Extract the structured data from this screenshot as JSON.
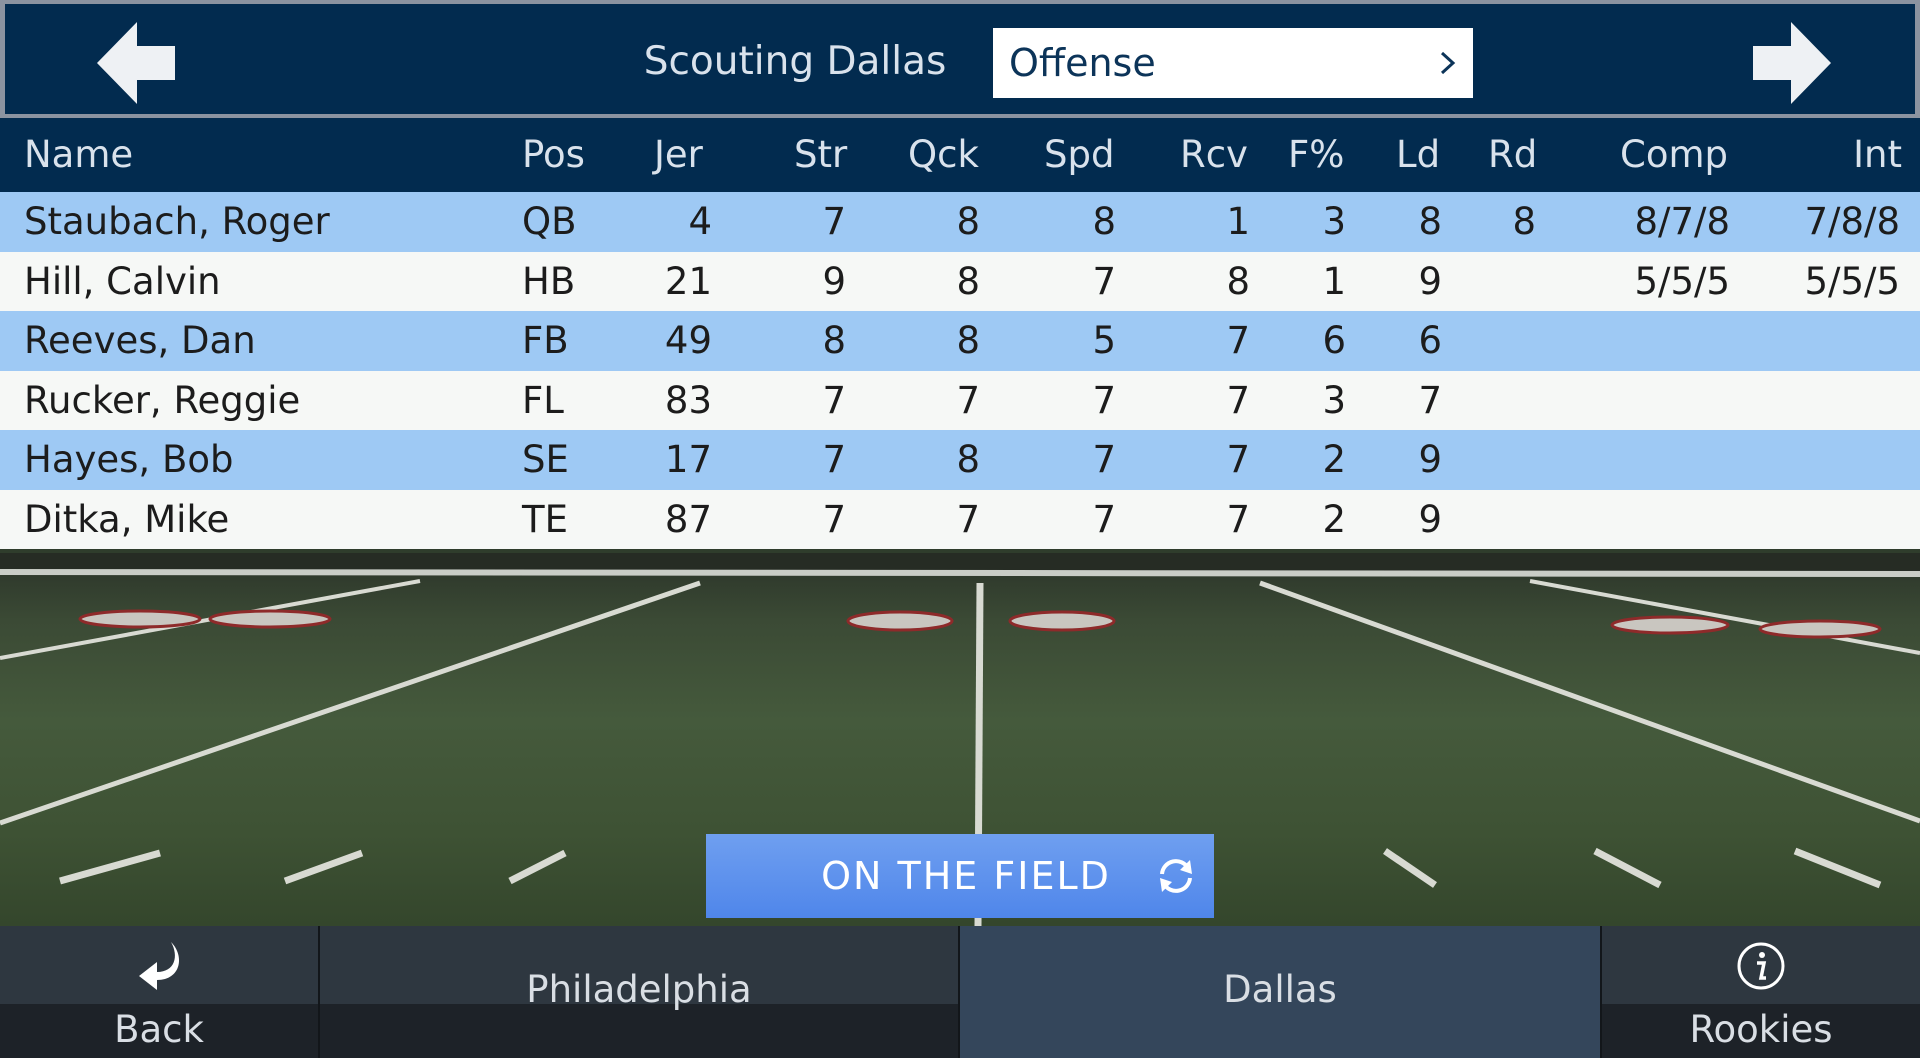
{
  "header": {
    "title": "Scouting Dallas",
    "dropdown_value": "Offense"
  },
  "table": {
    "columns": [
      "Name",
      "Pos",
      "Jer",
      "Str",
      "Qck",
      "Spd",
      "Rcv",
      "F%",
      "Ld",
      "Rd",
      "Comp",
      "Int"
    ],
    "rows": [
      {
        "name": "Staubach, Roger",
        "pos": "QB",
        "jer": "4",
        "str": "7",
        "qck": "8",
        "spd": "8",
        "rcv": "1",
        "fpct": "3",
        "ld": "8",
        "rd": "8",
        "comp": "8/7/8",
        "int": "7/8/8"
      },
      {
        "name": "Hill, Calvin",
        "pos": "HB",
        "jer": "21",
        "str": "9",
        "qck": "8",
        "spd": "7",
        "rcv": "8",
        "fpct": "1",
        "ld": "9",
        "rd": "",
        "comp": "5/5/5",
        "int": "5/5/5"
      },
      {
        "name": "Reeves, Dan",
        "pos": "FB",
        "jer": "49",
        "str": "8",
        "qck": "8",
        "spd": "5",
        "rcv": "7",
        "fpct": "6",
        "ld": "6",
        "rd": "",
        "comp": "",
        "int": ""
      },
      {
        "name": "Rucker, Reggie",
        "pos": "FL",
        "jer": "83",
        "str": "7",
        "qck": "7",
        "spd": "7",
        "rcv": "7",
        "fpct": "3",
        "ld": "7",
        "rd": "",
        "comp": "",
        "int": ""
      },
      {
        "name": "Hayes, Bob",
        "pos": "SE",
        "jer": "17",
        "str": "7",
        "qck": "8",
        "spd": "7",
        "rcv": "7",
        "fpct": "2",
        "ld": "9",
        "rd": "",
        "comp": "",
        "int": ""
      },
      {
        "name": "Ditka, Mike",
        "pos": "TE",
        "jer": "87",
        "str": "7",
        "qck": "7",
        "spd": "7",
        "rcv": "7",
        "fpct": "2",
        "ld": "9",
        "rd": "",
        "comp": "",
        "int": ""
      }
    ]
  },
  "field_button": {
    "label": "ON THE FIELD",
    "icon": "refresh-icon"
  },
  "bottom_nav": {
    "back": {
      "label": "Back",
      "icon": "back-arrow-icon"
    },
    "home_team": {
      "label": "Philadelphia"
    },
    "away_team": {
      "label": "Dallas",
      "selected": true
    },
    "rookies": {
      "label": "Rookies",
      "icon": "info-icon"
    }
  },
  "colors": {
    "header_bg": "#022b4f",
    "row_blue": "#9ec9f4",
    "row_white": "#f6f8f6",
    "button_blue": "#5b8ff0",
    "nav_selected": "#34465b"
  }
}
